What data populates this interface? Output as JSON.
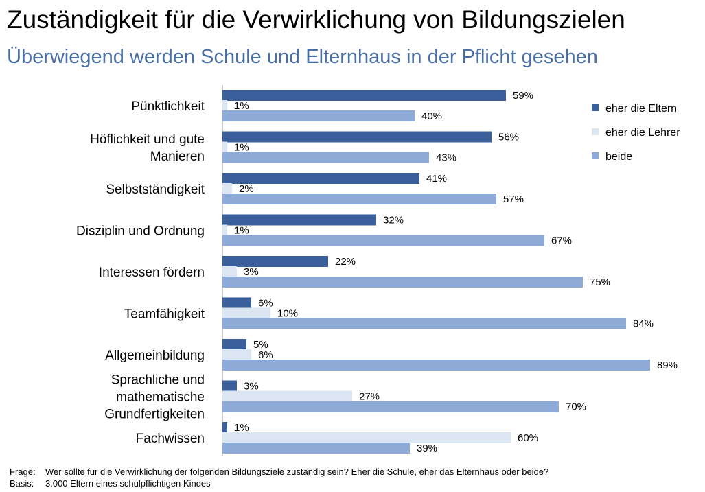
{
  "header": {
    "title": "Zuständigkeit für die Verwirklichung von Bildungszielen",
    "subtitle": "Überwiegend werden Schule und Elternhaus in der Pflicht gesehen"
  },
  "chart_data": {
    "type": "bar",
    "orientation": "horizontal",
    "categories": [
      [
        "Pünktlichkeit"
      ],
      [
        "Höflichkeit und gute",
        "Manieren"
      ],
      [
        "Selbstständigkeit"
      ],
      [
        "Disziplin und Ordnung"
      ],
      [
        "Interessen fördern"
      ],
      [
        "Teamfähigkeit"
      ],
      [
        "Allgemeinbildung"
      ],
      [
        "Sprachliche und",
        "mathematische",
        "Grundfertigkeiten"
      ],
      [
        "Fachwissen"
      ]
    ],
    "series": [
      {
        "name": "eher die Eltern",
        "color": "#3a5f9a",
        "values": [
          59,
          56,
          41,
          32,
          22,
          6,
          5,
          3,
          1
        ]
      },
      {
        "name": "eher die Lehrer",
        "color": "#dce5f2",
        "values": [
          1,
          1,
          2,
          1,
          3,
          10,
          6,
          27,
          60
        ]
      },
      {
        "name": "beide",
        "color": "#8eaad6",
        "values": [
          40,
          43,
          57,
          67,
          75,
          84,
          89,
          70,
          39
        ]
      }
    ],
    "value_suffix": "%",
    "legend_position": "top-right",
    "grid": false
  },
  "footer": {
    "frage_label": "Frage:",
    "frage_text": "Wer sollte für die Verwirklichung der folgenden Bildungsziele zuständig sein? Eher die Schule, eher das Elternhaus oder beide?",
    "basis_label": "Basis:",
    "basis_text": "3.000 Eltern eines schulpflichtigen Kindes"
  }
}
